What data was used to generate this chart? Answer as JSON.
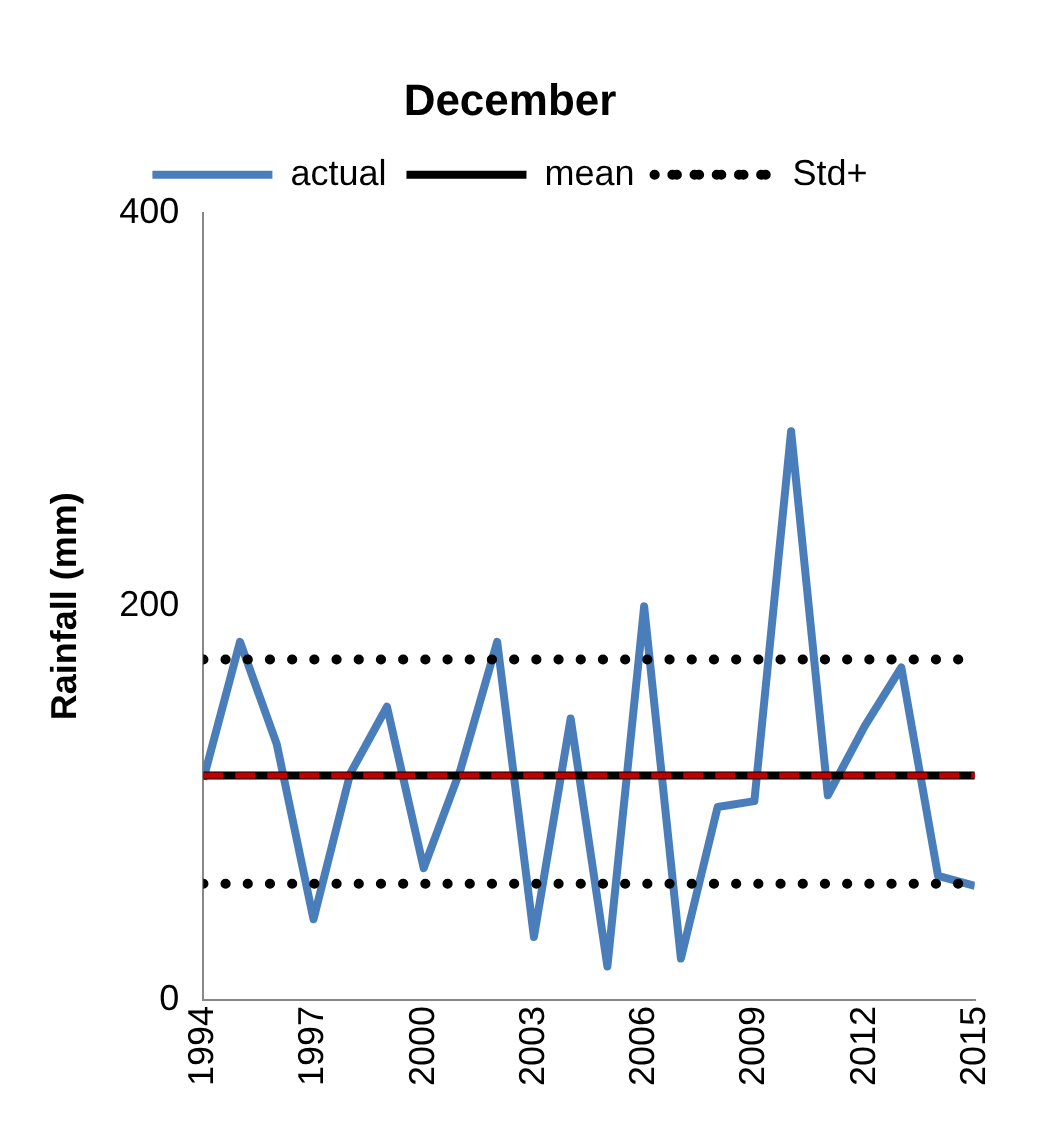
{
  "chart_data": {
    "type": "line",
    "title": "December",
    "ylabel": "Rainfall (mm)",
    "x": [
      1994,
      1995,
      1996,
      1997,
      1998,
      1999,
      2000,
      2001,
      2002,
      2003,
      2004,
      2005,
      2006,
      2007,
      2008,
      2009,
      2010,
      2011,
      2012,
      2013,
      2014,
      2015
    ],
    "xlim": [
      1994,
      2015
    ],
    "xticks": [
      1994,
      1997,
      2000,
      2003,
      2006,
      2009,
      2012,
      2015
    ],
    "ylim": [
      0,
      400
    ],
    "yticks": [
      0,
      200,
      400
    ],
    "grid": false,
    "legend": "top",
    "marker": "none",
    "series": [
      {
        "name": "actual",
        "color": "#4a7ebb",
        "line_style": "solid",
        "values": [
          112,
          182,
          130,
          41,
          115,
          149,
          67,
          117,
          182,
          32,
          143,
          17,
          200,
          21,
          98,
          101,
          289,
          104,
          139,
          169,
          63,
          58
        ]
      },
      {
        "name": "mean",
        "color": "#000000",
        "line_style": "solid",
        "values": [
          114,
          114,
          114,
          114,
          114,
          114,
          114,
          114,
          114,
          114,
          114,
          114,
          114,
          114,
          114,
          114,
          114,
          114,
          114,
          114,
          114,
          114
        ]
      },
      {
        "name": "Std+",
        "color": "#000000",
        "line_style": "dotted",
        "values": [
          173,
          173,
          173,
          173,
          173,
          173,
          173,
          173,
          173,
          173,
          173,
          173,
          173,
          173,
          173,
          173,
          173,
          173,
          173,
          173,
          173,
          173
        ]
      },
      {
        "color": "#000000",
        "line_style": "dotted",
        "values": [
          59,
          59,
          59,
          59,
          59,
          59,
          59,
          59,
          59,
          59,
          59,
          59,
          59,
          59,
          59,
          59,
          59,
          59,
          59,
          59,
          59,
          59
        ]
      },
      {
        "color": "#c00000",
        "line_style": "dashed",
        "values": [
          114,
          114,
          114,
          114,
          114,
          114,
          114,
          114,
          114,
          114,
          114,
          114,
          114,
          114,
          114,
          114,
          114,
          114,
          114,
          114,
          114,
          114
        ]
      }
    ]
  }
}
